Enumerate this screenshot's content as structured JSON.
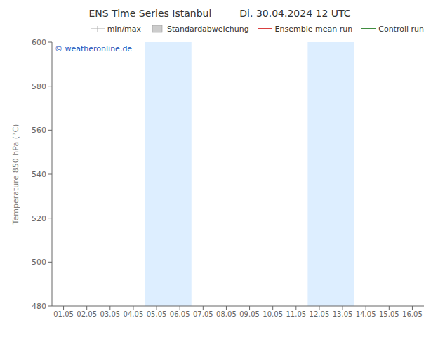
{
  "chart_data": {
    "type": "line",
    "title": "ENS Time Series Istanbul",
    "subtitle": "Di. 30.04.2024 12 UTC",
    "y_label": "Temperature 850 hPa (°C)",
    "categories": [
      "01.05",
      "02.05",
      "03.05",
      "04.05",
      "05.05",
      "06.05",
      "07.05",
      "08.05",
      "09.05",
      "10.05",
      "11.05",
      "12.05",
      "13.05",
      "14.05",
      "15.05",
      "16.05"
    ],
    "xlim": [
      -0.5,
      15.5
    ],
    "ylim": [
      480,
      600
    ],
    "yticks": [
      480,
      500,
      520,
      540,
      560,
      580,
      600
    ],
    "series": [
      {
        "name": "min/max",
        "color": "#aaaaaa",
        "type": "range",
        "values": [
          null,
          null,
          null,
          null,
          null,
          null,
          null,
          null,
          null,
          null,
          null,
          null,
          null,
          null,
          null,
          null
        ]
      },
      {
        "name": "Standardabweichung",
        "color": "#cccccc",
        "type": "band",
        "values": [
          null,
          null,
          null,
          null,
          null,
          null,
          null,
          null,
          null,
          null,
          null,
          null,
          null,
          null,
          null,
          null
        ]
      },
      {
        "name": "Ensemble mean run",
        "color": "#cc0000",
        "type": "line",
        "values": [
          null,
          null,
          null,
          null,
          null,
          null,
          null,
          null,
          null,
          null,
          null,
          null,
          null,
          null,
          null,
          null
        ]
      },
      {
        "name": "Controll run",
        "color": "#006600",
        "type": "line",
        "values": [
          null,
          null,
          null,
          null,
          null,
          null,
          null,
          null,
          null,
          null,
          null,
          null,
          null,
          null,
          null,
          null
        ]
      }
    ],
    "shaded_bands": [
      {
        "x_start": 3.5,
        "x_end": 5.5,
        "color": "#ddeeff"
      },
      {
        "x_start": 10.5,
        "x_end": 12.5,
        "color": "#ddeeff"
      }
    ],
    "annotations": [
      {
        "text": "© weatheronline.de",
        "color": "#2255bb"
      }
    ],
    "legend": "top",
    "grid": false
  }
}
